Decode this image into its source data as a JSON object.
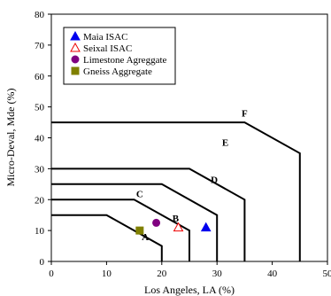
{
  "chart_data": {
    "type": "scatter",
    "title": "",
    "xlabel": "Los Angeles, LA (%)",
    "ylabel": "Micro-Deval, Mde (%)",
    "xlim": [
      0,
      50
    ],
    "ylim": [
      0,
      80
    ],
    "x_ticks": [
      0,
      10,
      20,
      30,
      40,
      50
    ],
    "y_ticks": [
      0,
      10,
      20,
      30,
      40,
      50,
      60,
      70,
      80
    ],
    "grid": false,
    "legend_position": "top-left",
    "series": [
      {
        "name": "Maia ISAC",
        "marker": "filled-triangle",
        "color": "#0000ee",
        "points": [
          [
            28,
            11
          ]
        ]
      },
      {
        "name": "Seixal ISAC",
        "marker": "open-triangle",
        "color": "#ee0000",
        "points": [
          [
            23,
            11
          ]
        ]
      },
      {
        "name": "Limestone Agreggate",
        "marker": "circle",
        "color": "#800080",
        "points": [
          [
            19,
            12.5
          ]
        ]
      },
      {
        "name": "Gneiss Aggregate",
        "marker": "square",
        "color": "#808000",
        "points": [
          [
            16,
            10
          ]
        ]
      }
    ],
    "regions": [
      {
        "label": "A",
        "label_at": [
          17,
          8
        ],
        "boundary": [
          [
            0,
            15
          ],
          [
            10,
            15
          ],
          [
            20,
            5
          ],
          [
            20,
            0
          ]
        ]
      },
      {
        "label": "B",
        "label_at": [
          22.5,
          14
        ],
        "boundary": [
          [
            0,
            20
          ],
          [
            15,
            20
          ],
          [
            25,
            10
          ],
          [
            25,
            0
          ]
        ]
      },
      {
        "label": "C",
        "label_at": [
          16,
          22
        ],
        "boundary": [
          [
            0,
            25
          ],
          [
            20,
            25
          ],
          [
            30,
            15
          ],
          [
            30,
            0
          ]
        ]
      },
      {
        "label": "D",
        "label_at": [
          29.5,
          26.5
        ],
        "boundary": [
          [
            0,
            30
          ],
          [
            25,
            30
          ],
          [
            35,
            20
          ],
          [
            35,
            0
          ]
        ]
      },
      {
        "label": "E",
        "label_at": [
          31.5,
          38.5
        ],
        "boundary": []
      },
      {
        "label": "F",
        "label_at": [
          35,
          48
        ],
        "boundary": [
          [
            0,
            45
          ],
          [
            35,
            45
          ],
          [
            45,
            35
          ],
          [
            45,
            0
          ]
        ]
      }
    ]
  }
}
